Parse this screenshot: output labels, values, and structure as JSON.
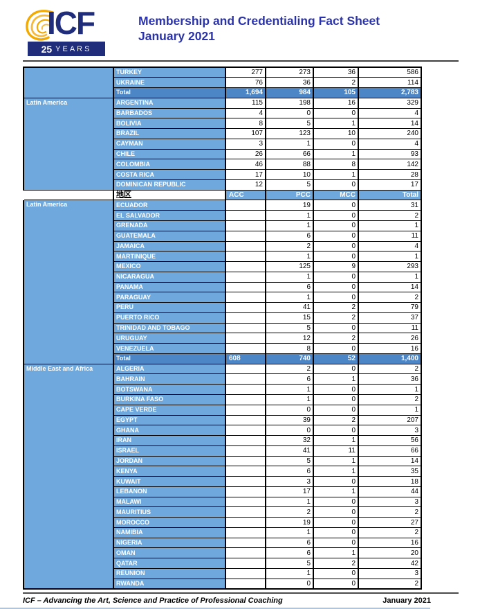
{
  "header": {
    "logo_text": "ICF",
    "badge_25": "25",
    "badge_years": "YEARS",
    "title_line1": "Membership and Credentialing Fact Sheet",
    "title_line2": "January 2021"
  },
  "colors": {
    "light_blue": "#6FA8DC",
    "total_blue": "#4C86C6",
    "title_blue": "#2B33A8",
    "logo_navy": "#1F2D7B",
    "logo_gold": "#F2A900"
  },
  "table": {
    "rows": [
      {
        "kind": "data",
        "region": {
          "label": "",
          "span": 3
        },
        "country": "TURKEY",
        "values": [
          "277",
          "273",
          "36",
          "586"
        ]
      },
      {
        "kind": "data",
        "country": "UKRAINE",
        "values": [
          "76",
          "36",
          "2",
          "114"
        ]
      },
      {
        "kind": "total",
        "country": "Total",
        "values": [
          "1,694",
          "984",
          "105",
          "2,783"
        ]
      },
      {
        "kind": "data",
        "region": {
          "label": "Latin America",
          "span": 9
        },
        "country": "ARGENTINA",
        "values": [
          "115",
          "198",
          "16",
          "329"
        ]
      },
      {
        "kind": "data",
        "country": "BARBADOS",
        "values": [
          "4",
          "0",
          "0",
          "4"
        ]
      },
      {
        "kind": "data",
        "country": "BOLIVIA",
        "values": [
          "8",
          "5",
          "1",
          "14"
        ]
      },
      {
        "kind": "data",
        "country": "BRAZIL",
        "values": [
          "107",
          "123",
          "10",
          "240"
        ]
      },
      {
        "kind": "data",
        "country": "CAYMAN",
        "values": [
          "3",
          "1",
          "0",
          "4"
        ]
      },
      {
        "kind": "data",
        "country": "CHILE",
        "values": [
          "26",
          "66",
          "1",
          "93"
        ]
      },
      {
        "kind": "data",
        "country": "COLOMBIA",
        "values": [
          "46",
          "88",
          "8",
          "142"
        ]
      },
      {
        "kind": "data",
        "country": "COSTA RICA",
        "values": [
          "17",
          "10",
          "1",
          "28"
        ]
      },
      {
        "kind": "data",
        "country": "DOMINICAN REPUBLIC",
        "values": [
          "12",
          "5",
          "0",
          "17"
        ]
      },
      {
        "kind": "colheader",
        "region": {
          "label": "",
          "span": 1,
          "white": true
        },
        "label": "地区",
        "values": [
          "ACC",
          "PCC",
          "MCC",
          "Total"
        ]
      },
      {
        "kind": "data",
        "region": {
          "label": "Latin America",
          "span": 16
        },
        "country": "ECUADOR",
        "values": [
          "",
          "19",
          "0",
          "31"
        ]
      },
      {
        "kind": "data",
        "country": "EL SALVADOR",
        "values": [
          "",
          "1",
          "0",
          "2"
        ]
      },
      {
        "kind": "data",
        "country": "GRENADA",
        "values": [
          "",
          "1",
          "0",
          "1"
        ]
      },
      {
        "kind": "data",
        "country": "GUATEMALA",
        "values": [
          "",
          "6",
          "0",
          "11"
        ]
      },
      {
        "kind": "data",
        "country": "JAMAICA",
        "values": [
          "",
          "2",
          "0",
          "4"
        ]
      },
      {
        "kind": "data",
        "country": "MARTINIQUE",
        "values": [
          "",
          "1",
          "0",
          "1"
        ]
      },
      {
        "kind": "data",
        "country": "MEXICO",
        "values": [
          "",
          "125",
          "9",
          "293"
        ]
      },
      {
        "kind": "data",
        "country": "NICARAGUA",
        "values": [
          "",
          "1",
          "0",
          "1"
        ]
      },
      {
        "kind": "data",
        "country": "PANAMA",
        "values": [
          "",
          "6",
          "0",
          "14"
        ]
      },
      {
        "kind": "data",
        "country": "PARAGUAY",
        "values": [
          "",
          "1",
          "0",
          "2"
        ]
      },
      {
        "kind": "data",
        "country": "PERU",
        "values": [
          "",
          "41",
          "2",
          "79"
        ]
      },
      {
        "kind": "data",
        "country": "PUERTO RICO",
        "values": [
          "",
          "15",
          "2",
          "37"
        ]
      },
      {
        "kind": "data",
        "country": "TRINIDAD AND TOBAGO",
        "values": [
          "",
          "5",
          "0",
          "11"
        ]
      },
      {
        "kind": "data",
        "country": "URUGUAY",
        "values": [
          "",
          "12",
          "2",
          "26"
        ]
      },
      {
        "kind": "data",
        "country": "VENEZUELA",
        "values": [
          "",
          "8",
          "0",
          "16"
        ]
      },
      {
        "kind": "total",
        "accLeft": true,
        "country": "Total",
        "values": [
          "608",
          "740",
          "52",
          "1,400"
        ]
      },
      {
        "kind": "data",
        "region": {
          "label": "Middle East and Africa",
          "span": 22
        },
        "country": "ALGERIA",
        "values": [
          "",
          "2",
          "0",
          "2"
        ]
      },
      {
        "kind": "data",
        "country": "BAHRAIN",
        "values": [
          "",
          "6",
          "1",
          "36"
        ]
      },
      {
        "kind": "data",
        "country": "BOTSWANA",
        "values": [
          "",
          "1",
          "0",
          "1"
        ]
      },
      {
        "kind": "data",
        "country": "BURKINA FASO",
        "values": [
          "",
          "1",
          "0",
          "2"
        ]
      },
      {
        "kind": "data",
        "country": "CAPE VERDE",
        "values": [
          "",
          "0",
          "0",
          "1"
        ]
      },
      {
        "kind": "data",
        "country": "EGYPT",
        "values": [
          "",
          "39",
          "2",
          "207"
        ]
      },
      {
        "kind": "data",
        "country": "GHANA",
        "values": [
          "",
          "0",
          "0",
          "3"
        ]
      },
      {
        "kind": "data",
        "country": "IRAN",
        "values": [
          "",
          "32",
          "1",
          "56"
        ]
      },
      {
        "kind": "data",
        "country": "ISRAEL",
        "values": [
          "",
          "41",
          "11",
          "66"
        ]
      },
      {
        "kind": "data",
        "country": "JORDAN",
        "values": [
          "",
          "5",
          "1",
          "14"
        ]
      },
      {
        "kind": "data",
        "country": "KENYA",
        "values": [
          "",
          "6",
          "1",
          "35"
        ]
      },
      {
        "kind": "data",
        "country": "KUWAIT",
        "values": [
          "",
          "3",
          "0",
          "18"
        ]
      },
      {
        "kind": "data",
        "country": "LEBANON",
        "values": [
          "",
          "17",
          "1",
          "44"
        ]
      },
      {
        "kind": "data",
        "country": "MALAWI",
        "values": [
          "",
          "1",
          "0",
          "3"
        ]
      },
      {
        "kind": "data",
        "country": "MAURITIUS",
        "values": [
          "",
          "2",
          "0",
          "2"
        ]
      },
      {
        "kind": "data",
        "country": "MOROCCO",
        "values": [
          "",
          "19",
          "0",
          "27"
        ]
      },
      {
        "kind": "data",
        "country": "NAMIBIA",
        "values": [
          "",
          "1",
          "0",
          "2"
        ]
      },
      {
        "kind": "data",
        "country": "NIGERIA",
        "values": [
          "",
          "6",
          "0",
          "16"
        ]
      },
      {
        "kind": "data",
        "country": "OMAN",
        "values": [
          "",
          "6",
          "1",
          "20"
        ]
      },
      {
        "kind": "data",
        "country": "QATAR",
        "values": [
          "",
          "5",
          "2",
          "42"
        ]
      },
      {
        "kind": "data",
        "country": "REUNION",
        "values": [
          "",
          "1",
          "0",
          "3"
        ]
      },
      {
        "kind": "data",
        "country": "RWANDA",
        "values": [
          "",
          "0",
          "0",
          "2"
        ]
      }
    ]
  },
  "footer": {
    "left": "ICF – Advancing the Art, Science and Practice of Professional Coaching",
    "right": "January 2021"
  }
}
